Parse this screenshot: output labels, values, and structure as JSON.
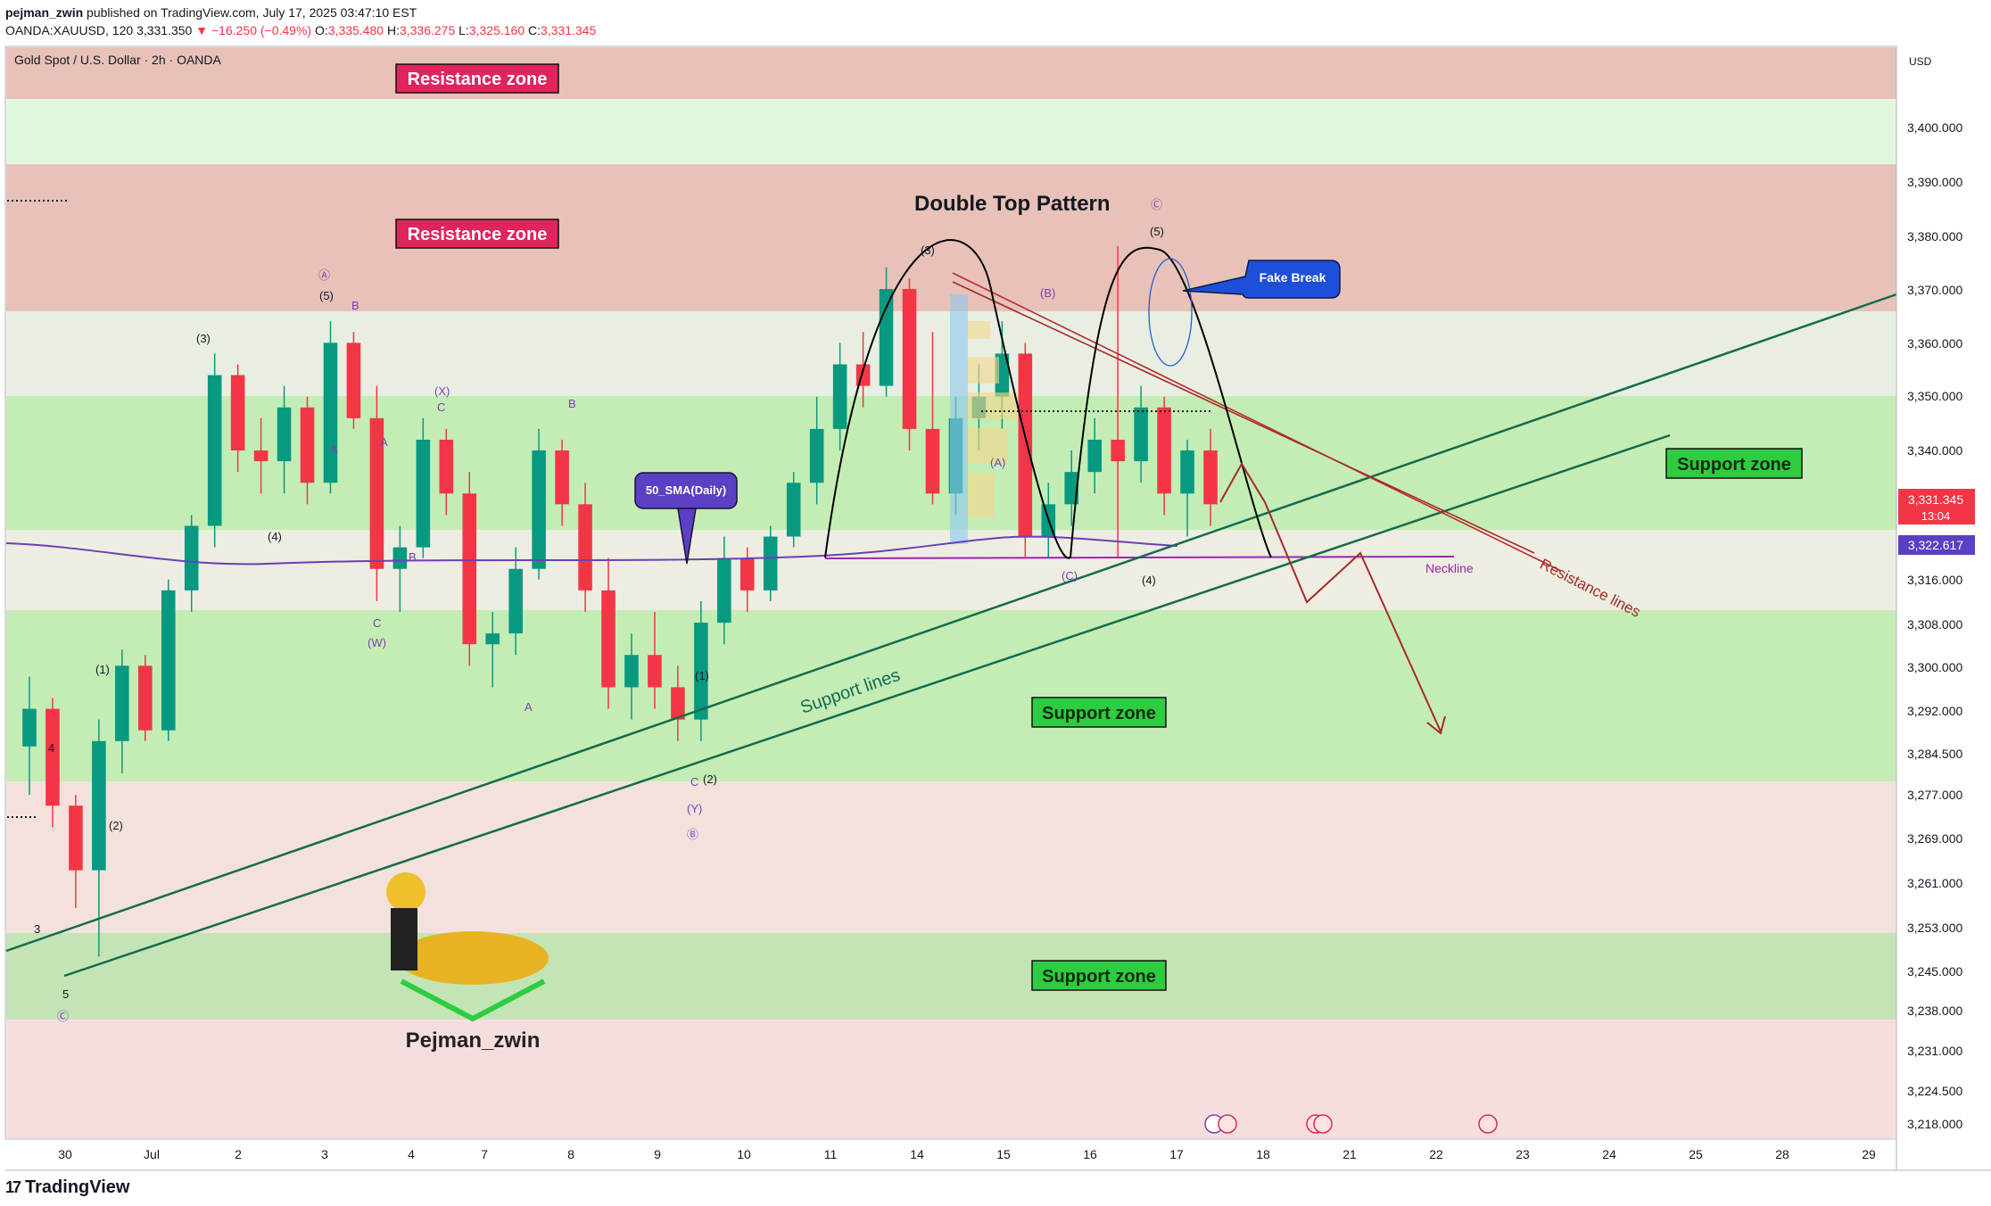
{
  "header": {
    "author": "pejman_zwin",
    "published": "published on TradingView.com, July 17, 2025 03:47:10 EST",
    "symbol": "OANDA:XAUUSD, 120",
    "last": "3,331.350",
    "change": "−16.250 (−0.49%)",
    "o_label": "O:",
    "o": "3,335.480",
    "h_label": "H:",
    "h": "3,336.275",
    "l_label": "L:",
    "l": "3,325.160",
    "c_label": "C:",
    "c": "3,331.345"
  },
  "footer": {
    "brand": "TradingView",
    "mark": "17"
  },
  "chart_data": {
    "type": "candlestick",
    "title": "Gold Spot / U.S. Dollar · 2h · OANDA",
    "currency": "USD",
    "y_ticks": [
      "3,400.000",
      "3,390.000",
      "3,380.000",
      "3,370.000",
      "3,360.000",
      "3,350.000",
      "3,340.000",
      "3,316.000",
      "3,308.000",
      "3,300.000",
      "3,292.000",
      "3,284.500",
      "3,277.000",
      "3,269.000",
      "3,261.000",
      "3,253.000",
      "3,245.000",
      "3,238.000",
      "3,231.000",
      "3,224.500",
      "3,218.000"
    ],
    "x_ticks": [
      "30",
      "Jul",
      "2",
      "3",
      "4",
      "7",
      "8",
      "9",
      "10",
      "11",
      "14",
      "15",
      "16",
      "17",
      "18",
      "21",
      "22",
      "23",
      "24",
      "25",
      "28",
      "29"
    ],
    "price_labels": {
      "last": "3,331.345",
      "countdown": "13:04",
      "sma": "3,322.617"
    },
    "pattern_title": "Double Top Pattern",
    "annotations": {
      "resistance_zone": "Resistance zone",
      "support_zone": "Support zone",
      "fake_break": "Fake Break",
      "sma": "50_SMA(Daily)",
      "support_lines": "Support lines",
      "resistance_lines": "Resistance lines",
      "neckline": "Neckline",
      "signature": "Pejman_zwin"
    },
    "wave_labels": [
      "(3)",
      "(5)",
      "(1)",
      "(2)",
      "(4)",
      "4",
      "3",
      "5",
      "Ⓐ",
      "B",
      "A",
      "C",
      "(W)",
      "(X)",
      "Ⓑ",
      "(Y)",
      "(C)",
      "(A)",
      "(B)",
      "Ⓒ",
      "(1)",
      "(2)",
      "(3)",
      "(4)",
      "(5)"
    ],
    "candles": [
      {
        "o": 3285,
        "h": 3298,
        "l": 3276,
        "c": 3292
      },
      {
        "o": 3292,
        "h": 3294,
        "l": 3270,
        "c": 3274
      },
      {
        "o": 3274,
        "h": 3276,
        "l": 3255,
        "c": 3262
      },
      {
        "o": 3262,
        "h": 3290,
        "l": 3246,
        "c": 3286
      },
      {
        "o": 3286,
        "h": 3303,
        "l": 3280,
        "c": 3300
      },
      {
        "o": 3300,
        "h": 3302,
        "l": 3286,
        "c": 3288
      },
      {
        "o": 3288,
        "h": 3316,
        "l": 3286,
        "c": 3314
      },
      {
        "o": 3314,
        "h": 3328,
        "l": 3310,
        "c": 3326
      },
      {
        "o": 3326,
        "h": 3358,
        "l": 3322,
        "c": 3354
      },
      {
        "o": 3354,
        "h": 3356,
        "l": 3336,
        "c": 3340
      },
      {
        "o": 3340,
        "h": 3346,
        "l": 3332,
        "c": 3338
      },
      {
        "o": 3338,
        "h": 3352,
        "l": 3332,
        "c": 3348
      },
      {
        "o": 3348,
        "h": 3350,
        "l": 3330,
        "c": 3334
      },
      {
        "o": 3334,
        "h": 3364,
        "l": 3332,
        "c": 3360
      },
      {
        "o": 3360,
        "h": 3362,
        "l": 3344,
        "c": 3346
      },
      {
        "o": 3346,
        "h": 3352,
        "l": 3312,
        "c": 3318
      },
      {
        "o": 3318,
        "h": 3326,
        "l": 3310,
        "c": 3322
      },
      {
        "o": 3322,
        "h": 3346,
        "l": 3320,
        "c": 3342
      },
      {
        "o": 3342,
        "h": 3344,
        "l": 3328,
        "c": 3332
      },
      {
        "o": 3332,
        "h": 3336,
        "l": 3300,
        "c": 3304
      },
      {
        "o": 3304,
        "h": 3310,
        "l": 3296,
        "c": 3306
      },
      {
        "o": 3306,
        "h": 3322,
        "l": 3302,
        "c": 3318
      },
      {
        "o": 3318,
        "h": 3344,
        "l": 3316,
        "c": 3340
      },
      {
        "o": 3340,
        "h": 3342,
        "l": 3326,
        "c": 3330
      },
      {
        "o": 3330,
        "h": 3334,
        "l": 3310,
        "c": 3314
      },
      {
        "o": 3314,
        "h": 3320,
        "l": 3292,
        "c": 3296
      },
      {
        "o": 3296,
        "h": 3306,
        "l": 3290,
        "c": 3302
      },
      {
        "o": 3302,
        "h": 3310,
        "l": 3292,
        "c": 3296
      },
      {
        "o": 3296,
        "h": 3300,
        "l": 3286,
        "c": 3290
      },
      {
        "o": 3290,
        "h": 3312,
        "l": 3286,
        "c": 3308
      },
      {
        "o": 3308,
        "h": 3324,
        "l": 3304,
        "c": 3320
      },
      {
        "o": 3320,
        "h": 3322,
        "l": 3310,
        "c": 3314
      },
      {
        "o": 3314,
        "h": 3326,
        "l": 3312,
        "c": 3324
      },
      {
        "o": 3324,
        "h": 3336,
        "l": 3322,
        "c": 3334
      },
      {
        "o": 3334,
        "h": 3350,
        "l": 3330,
        "c": 3344
      },
      {
        "o": 3344,
        "h": 3360,
        "l": 3340,
        "c": 3356
      },
      {
        "o": 3356,
        "h": 3362,
        "l": 3348,
        "c": 3352
      },
      {
        "o": 3352,
        "h": 3374,
        "l": 3350,
        "c": 3370
      },
      {
        "o": 3370,
        "h": 3372,
        "l": 3340,
        "c": 3344
      },
      {
        "o": 3344,
        "h": 3362,
        "l": 3330,
        "c": 3332
      },
      {
        "o": 3332,
        "h": 3350,
        "l": 3328,
        "c": 3346
      },
      {
        "o": 3346,
        "h": 3356,
        "l": 3340,
        "c": 3350
      },
      {
        "o": 3350,
        "h": 3364,
        "l": 3344,
        "c": 3358
      },
      {
        "o": 3358,
        "h": 3360,
        "l": 3320,
        "c": 3324
      },
      {
        "o": 3324,
        "h": 3334,
        "l": 3320,
        "c": 3330
      },
      {
        "o": 3330,
        "h": 3340,
        "l": 3326,
        "c": 3336
      },
      {
        "o": 3336,
        "h": 3346,
        "l": 3332,
        "c": 3342
      },
      {
        "o": 3342,
        "h": 3378,
        "l": 3320,
        "c": 3338
      },
      {
        "o": 3338,
        "h": 3352,
        "l": 3334,
        "c": 3348
      },
      {
        "o": 3348,
        "h": 3350,
        "l": 3328,
        "c": 3332
      },
      {
        "o": 3332,
        "h": 3342,
        "l": 3324,
        "c": 3340
      },
      {
        "o": 3340,
        "h": 3344,
        "l": 3326,
        "c": 3330
      }
    ],
    "sma_label": "50_SMA(Daily)"
  }
}
